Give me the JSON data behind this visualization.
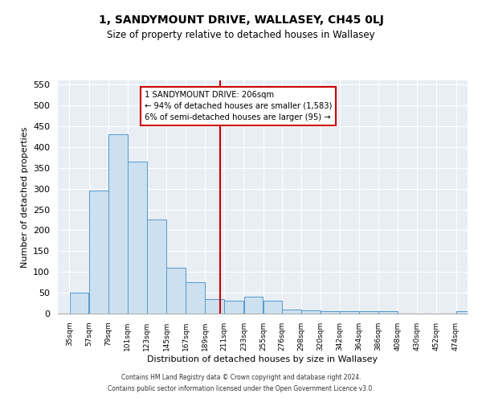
{
  "title": "1, SANDYMOUNT DRIVE, WALLASEY, CH45 0LJ",
  "subtitle": "Size of property relative to detached houses in Wallasey",
  "xlabel": "Distribution of detached houses by size in Wallasey",
  "ylabel": "Number of detached properties",
  "bar_color": "#cce0f0",
  "bar_edge_color": "#5599cc",
  "property_line_x": 206,
  "property_line_color": "#cc0000",
  "annotation_text": "1 SANDYMOUNT DRIVE: 206sqm\n← 94% of detached houses are smaller (1,583)\n6% of semi-detached houses are larger (95) →",
  "annotation_box_color": "#ffffff",
  "annotation_box_edge": "#cc0000",
  "footer_line1": "Contains HM Land Registry data © Crown copyright and database right 2024.",
  "footer_line2": "Contains public sector information licensed under the Open Government Licence v3.0.",
  "bins": [
    35,
    57,
    79,
    101,
    123,
    145,
    167,
    189,
    211,
    233,
    255,
    276,
    298,
    320,
    342,
    364,
    386,
    408,
    430,
    452,
    474,
    496
  ],
  "bin_labels": [
    "35sqm",
    "57sqm",
    "79sqm",
    "101sqm",
    "123sqm",
    "145sqm",
    "167sqm",
    "189sqm",
    "211sqm",
    "233sqm",
    "255sqm",
    "276sqm",
    "298sqm",
    "320sqm",
    "342sqm",
    "364sqm",
    "386sqm",
    "408sqm",
    "430sqm",
    "452sqm",
    "474sqm"
  ],
  "values": [
    50,
    295,
    430,
    365,
    225,
    110,
    75,
    35,
    30,
    40,
    30,
    10,
    8,
    5,
    5,
    5,
    5,
    0,
    0,
    0,
    5
  ],
  "ylim": [
    0,
    560
  ],
  "yticks": [
    0,
    50,
    100,
    150,
    200,
    250,
    300,
    350,
    400,
    450,
    500,
    550
  ],
  "bg_color": "#e8eef4",
  "fig_bg_color": "#ffffff"
}
